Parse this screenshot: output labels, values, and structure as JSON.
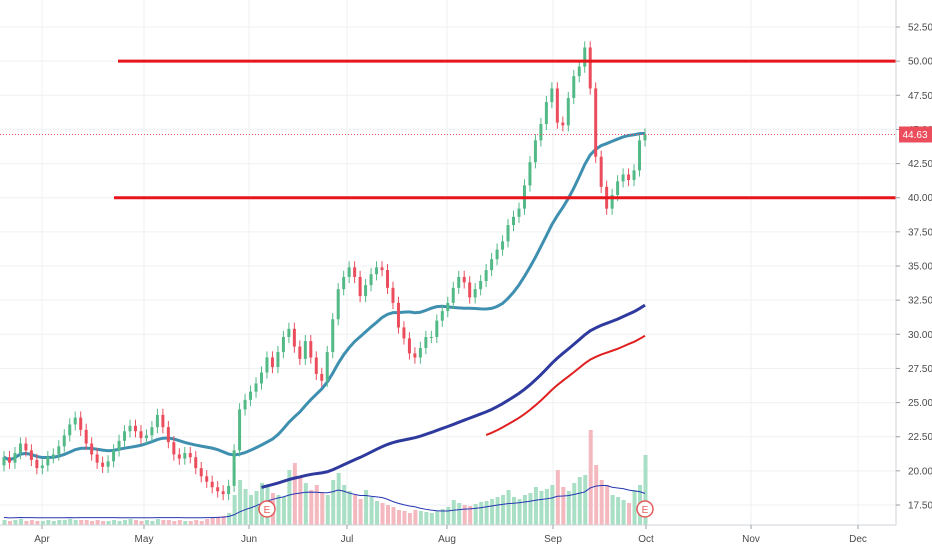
{
  "chart_data": {
    "type": "candlestick",
    "y_axis": {
      "ticks": [
        "17.50",
        "20.00",
        "22.50",
        "25.00",
        "27.50",
        "30.00",
        "32.50",
        "35.00",
        "37.50",
        "40.00",
        "42.50",
        "45.00",
        "47.50",
        "50.00",
        "52.50"
      ],
      "ylim": [
        16.5,
        53.6
      ]
    },
    "x_axis": {
      "ticks": [
        "Apr",
        "May",
        "Jun",
        "Jul",
        "Aug",
        "Sep",
        "Oct",
        "Nov",
        "Dec"
      ]
    },
    "current_price": {
      "label": "44.63",
      "value": 44.63
    },
    "horizontal_levels": [
      50.0,
      40.0
    ],
    "earnings_markers": [
      "E",
      "E"
    ],
    "gridlines": true,
    "colors": {
      "up": "#53b987",
      "down": "#eb4d5c",
      "ma_short": "#3f8fb0",
      "ma_long": "#2f3a9e",
      "ma_red": "#e02020",
      "level": "#e8141b",
      "volume_ma": "#2436b3",
      "vol_up": "#a9dfc4",
      "vol_down": "#f4b8bf"
    },
    "candles_close": [
      21.0,
      20.6,
      21.3,
      22.0,
      21.5,
      20.8,
      20.2,
      20.4,
      21.0,
      21.2,
      21.8,
      22.6,
      23.4,
      23.9,
      23.0,
      22.0,
      21.2,
      20.6,
      20.3,
      20.7,
      21.5,
      22.2,
      22.9,
      23.3,
      22.9,
      22.4,
      22.6,
      23.2,
      24.1,
      23.2,
      22.1,
      21.2,
      20.9,
      21.3,
      21.0,
      20.2,
      19.6,
      19.2,
      18.8,
      18.5,
      18.3,
      18.9,
      21.5,
      24.5,
      25.2,
      25.8,
      26.4,
      27.2,
      28.3,
      27.6,
      28.7,
      29.8,
      30.4,
      29.1,
      28.2,
      29.5,
      28.3,
      27.1,
      26.6,
      28.7,
      31.1,
      33.3,
      34.2,
      34.9,
      34.2,
      32.8,
      33.6,
      34.4,
      34.9,
      34.7,
      33.4,
      32.3,
      30.5,
      29.7,
      28.6,
      28.3,
      29.0,
      29.8,
      29.8,
      31.0,
      31.7,
      32.3,
      33.4,
      34.2,
      33.8,
      32.7,
      33.3,
      33.9,
      34.7,
      35.5,
      36.2,
      36.8,
      38.0,
      38.6,
      39.2,
      40.9,
      42.6,
      44.2,
      45.4,
      47.0,
      48.0,
      45.5,
      45.3,
      47.3,
      48.9,
      49.6,
      51.0,
      48.0,
      43.0,
      40.8,
      39.2,
      40.2,
      41.2,
      41.7,
      41.3,
      42.0,
      44.2,
      44.63
    ],
    "candles_open": [
      20.4,
      21.0,
      20.6,
      21.3,
      22.0,
      21.5,
      20.8,
      20.2,
      20.4,
      21.0,
      21.2,
      21.8,
      22.6,
      23.4,
      23.9,
      23.0,
      22.0,
      21.2,
      20.6,
      20.3,
      20.7,
      21.5,
      22.2,
      22.9,
      23.3,
      22.9,
      22.4,
      22.6,
      23.2,
      24.1,
      23.2,
      22.1,
      21.2,
      20.9,
      21.3,
      21.0,
      20.2,
      19.6,
      19.2,
      18.8,
      18.5,
      18.3,
      18.9,
      21.5,
      24.5,
      25.2,
      25.8,
      26.4,
      27.2,
      28.3,
      27.6,
      28.7,
      29.8,
      30.4,
      29.1,
      28.2,
      29.5,
      28.3,
      27.1,
      26.6,
      28.7,
      31.1,
      33.3,
      34.2,
      34.9,
      34.2,
      32.8,
      33.6,
      34.4,
      34.9,
      34.7,
      33.4,
      32.3,
      30.5,
      29.7,
      28.6,
      28.3,
      29.0,
      29.8,
      29.8,
      31.0,
      31.7,
      32.3,
      33.4,
      34.2,
      33.8,
      32.7,
      33.3,
      33.9,
      34.7,
      35.5,
      36.2,
      36.8,
      38.0,
      38.6,
      39.2,
      40.9,
      42.6,
      44.2,
      45.4,
      47.0,
      48.0,
      45.5,
      45.3,
      47.3,
      48.9,
      49.6,
      51.0,
      48.0,
      43.0,
      40.8,
      39.2,
      40.2,
      41.2,
      41.7,
      41.3,
      42.0,
      44.2
    ],
    "volume_rel": [
      0.05,
      0.04,
      0.05,
      0.06,
      0.04,
      0.05,
      0.04,
      0.04,
      0.05,
      0.04,
      0.05,
      0.05,
      0.06,
      0.05,
      0.05,
      0.05,
      0.04,
      0.05,
      0.04,
      0.04,
      0.05,
      0.04,
      0.05,
      0.06,
      0.05,
      0.04,
      0.05,
      0.04,
      0.06,
      0.05,
      0.05,
      0.04,
      0.05,
      0.04,
      0.04,
      0.05,
      0.04,
      0.06,
      0.07,
      0.08,
      0.09,
      0.12,
      0.3,
      0.45,
      0.36,
      0.3,
      0.34,
      0.42,
      0.38,
      0.32,
      0.3,
      0.28,
      0.55,
      0.62,
      0.48,
      0.42,
      0.35,
      0.4,
      0.33,
      0.3,
      0.45,
      0.52,
      0.4,
      0.34,
      0.3,
      0.26,
      0.35,
      0.28,
      0.24,
      0.22,
      0.2,
      0.18,
      0.15,
      0.14,
      0.12,
      0.15,
      0.14,
      0.13,
      0.12,
      0.14,
      0.16,
      0.18,
      0.25,
      0.22,
      0.2,
      0.19,
      0.21,
      0.23,
      0.24,
      0.26,
      0.28,
      0.3,
      0.35,
      0.28,
      0.26,
      0.3,
      0.32,
      0.38,
      0.34,
      0.36,
      0.4,
      0.55,
      0.38,
      0.34,
      0.42,
      0.48,
      0.5,
      0.95,
      0.6,
      0.45,
      0.4,
      0.3,
      0.28,
      0.25,
      0.22,
      0.35,
      0.4,
      0.7
    ]
  },
  "ui": {
    "e_marker_1": "E",
    "e_marker_2": "E"
  }
}
